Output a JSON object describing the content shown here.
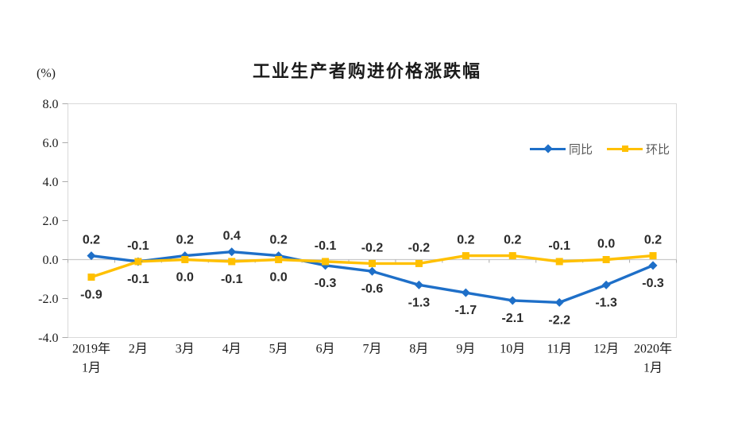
{
  "chart_data": {
    "type": "line",
    "title": "工业生产者购进价格涨跌幅",
    "ylabel": "(%)",
    "categories": [
      "2019年\n1月",
      "2月",
      "3月",
      "4月",
      "5月",
      "6月",
      "7月",
      "8月",
      "9月",
      "10月",
      "11月",
      "12月",
      "2020年\n1月"
    ],
    "series": [
      {
        "name": "同比",
        "marker": "diamond",
        "color": "#1E6FC8",
        "values": [
          0.2,
          -0.1,
          0.2,
          0.4,
          0.2,
          -0.3,
          -0.6,
          -1.3,
          -1.7,
          -2.1,
          -2.2,
          -1.3,
          -0.3
        ]
      },
      {
        "name": "环比",
        "marker": "square",
        "color": "#FFC000",
        "values": [
          -0.9,
          -0.1,
          0.0,
          -0.1,
          0.0,
          -0.1,
          -0.2,
          -0.2,
          0.2,
          0.2,
          -0.1,
          0.0,
          0.2
        ]
      }
    ],
    "ylim": [
      -4.0,
      8.0
    ],
    "y_ticks": [
      8.0,
      6.0,
      4.0,
      2.0,
      0.0,
      -2.0,
      -4.0
    ],
    "grid": "zero-line-only",
    "legend_position": "top-right-inside",
    "data_labels": "one-decimal, upper series labeled above points, lower series labeled below points"
  },
  "colors": {
    "plot_border": "#D9D9D9",
    "zero_line": "#C9C9C9",
    "tick": "#ABABAB",
    "title_text": "#1a1a1a",
    "axis_text": "#1a1a1a",
    "data_label_text": "#2b2b2b",
    "legend_text": "#595959"
  }
}
